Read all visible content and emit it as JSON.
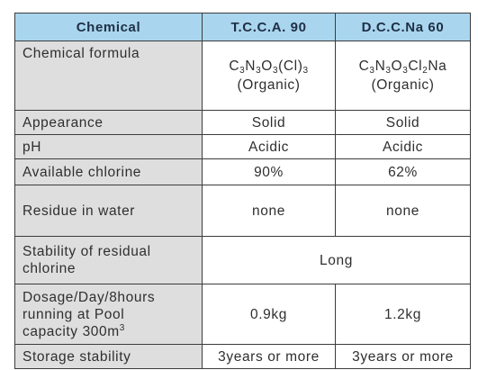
{
  "header": {
    "col1": "Chemical",
    "col2": "T.C.C.A. 90",
    "col3": "D.C.C.Na 60"
  },
  "rows": {
    "formula": {
      "label": "Chemical formula",
      "tcca": {
        "note": "(Organic)"
      },
      "dccna": {
        "note": "(Organic)"
      }
    },
    "appearance": {
      "label": "Appearance",
      "tcca": "Solid",
      "dccna": "Solid"
    },
    "ph": {
      "label": "pH",
      "tcca": "Acidic",
      "dccna": "Acidic"
    },
    "available_chlorine": {
      "label": "Available chlorine",
      "tcca": "90%",
      "dccna": "62%"
    },
    "residue": {
      "label": "Residue in water",
      "tcca": "none",
      "dccna": "none"
    },
    "stability": {
      "label_line1": "Stability of residual",
      "label_line2": "chlorine",
      "value": "Long"
    },
    "dosage": {
      "label_line1": "Dosage/Day/8hours",
      "label_line2": "running at Pool",
      "label_line3": "capacity 300m",
      "label_sup": "3",
      "tcca": "0.9kg",
      "dccna": "1.2kg"
    },
    "storage": {
      "label": "Storage stability",
      "tcca": "3years or more",
      "dccna": "3years or more"
    }
  }
}
